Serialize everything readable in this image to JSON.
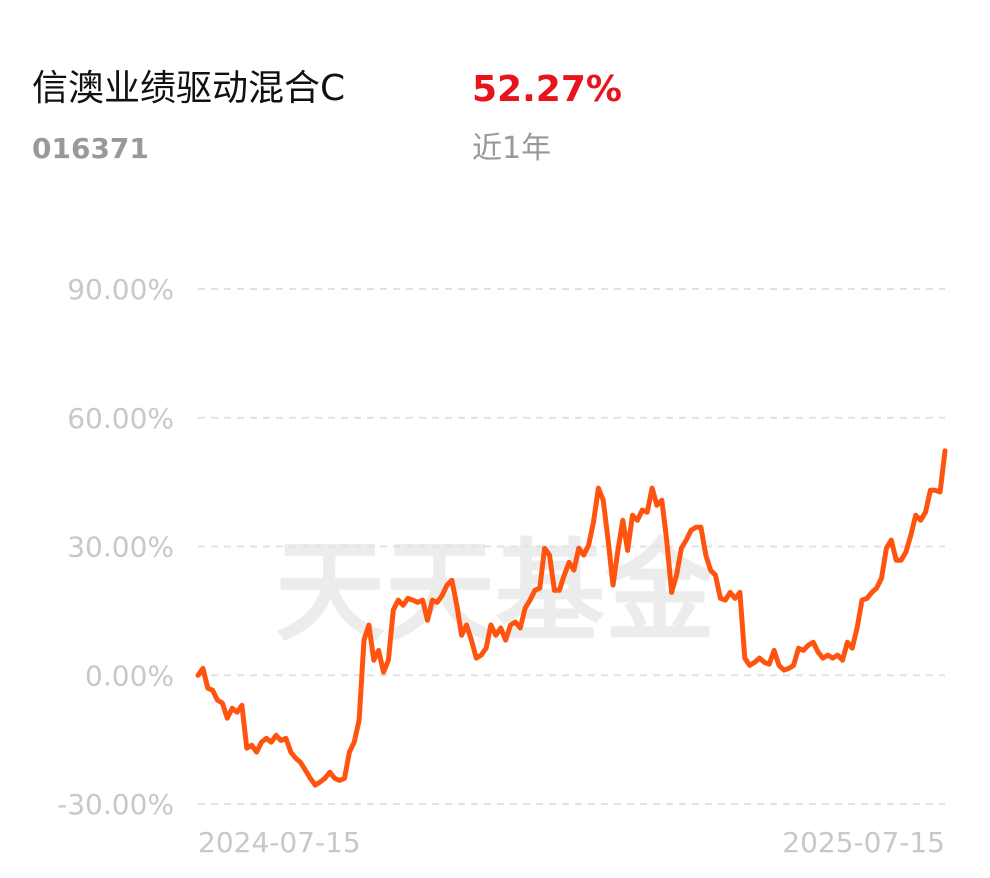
{
  "header": {
    "fund_name": "信澳业绩驱动混合C",
    "fund_code": "016371",
    "return": "52.27%",
    "period": "近1年"
  },
  "watermark": "天天基金",
  "chart_data": {
    "type": "line",
    "color": "#ff5410",
    "grid": true,
    "categories": [
      "2024-07-15",
      null,
      null,
      null,
      null,
      null,
      null,
      null,
      null,
      null,
      null,
      null,
      null,
      null,
      null,
      null,
      null,
      null,
      null,
      null,
      null,
      null,
      null,
      null,
      null,
      null,
      null,
      null,
      null,
      null,
      null,
      null,
      null,
      null,
      null,
      null,
      null,
      null,
      null,
      null,
      null,
      null,
      null,
      null,
      null,
      null,
      null,
      null,
      null,
      null,
      null,
      null,
      null,
      null,
      null,
      null,
      null,
      null,
      null,
      null,
      null,
      null,
      null,
      null,
      null,
      null,
      null,
      null,
      null,
      null,
      null,
      null,
      null,
      null,
      null,
      null,
      null,
      null,
      null,
      null,
      null,
      null,
      null,
      null,
      null,
      null,
      null,
      null,
      null,
      null,
      null,
      null,
      null,
      null,
      null,
      null,
      null,
      null,
      null,
      null,
      null,
      null,
      null,
      null,
      null,
      null,
      null,
      null,
      null,
      null,
      null,
      null,
      null,
      null,
      null,
      null,
      null,
      null,
      null,
      null,
      null,
      null,
      null,
      null,
      null,
      null,
      null,
      null,
      null,
      null,
      null,
      null,
      null,
      null,
      null,
      null,
      null,
      null,
      null,
      null,
      null,
      null,
      null,
      null,
      null,
      null,
      null,
      null,
      null,
      null,
      null,
      null,
      null,
      "2025-07-15"
    ],
    "values": [
      0,
      1.6,
      -3.0,
      -3.5,
      -5.8,
      -6.5,
      -10.0,
      -7.7,
      -8.6,
      -7.0,
      -17.0,
      -16.3,
      -17.9,
      -15.6,
      -14.7,
      -15.6,
      -14.0,
      -15.2,
      -14.7,
      -17.9,
      -19.3,
      -20.3,
      -22.1,
      -24.0,
      -25.6,
      -24.9,
      -24.0,
      -22.6,
      -24.0,
      -24.5,
      -24.0,
      -17.9,
      -15.6,
      -10.5,
      8.2,
      11.7,
      3.5,
      5.8,
      0.7,
      3.5,
      15.2,
      17.5,
      16.3,
      17.9,
      17.5,
      17.0,
      17.5,
      12.8,
      17.5,
      17.0,
      18.6,
      21.0,
      22.1,
      16.3,
      9.3,
      11.7,
      8.2,
      4.0,
      4.7,
      6.3,
      11.7,
      9.3,
      11.0,
      8.2,
      11.7,
      12.4,
      11.0,
      15.6,
      17.5,
      19.8,
      20.3,
      29.6,
      28.0,
      19.8,
      19.8,
      23.3,
      26.3,
      24.5,
      29.6,
      28.0,
      30.3,
      35.7,
      43.6,
      40.8,
      31.5,
      21.0,
      29.1,
      36.1,
      29.1,
      37.3,
      36.1,
      38.5,
      38.0,
      43.6,
      39.6,
      40.8,
      31.5,
      19.3,
      23.3,
      29.6,
      31.5,
      33.8,
      34.5,
      34.5,
      28.0,
      24.5,
      23.3,
      17.9,
      17.5,
      19.3,
      17.9,
      19.3,
      4.0,
      2.3,
      3.0,
      4.0,
      3.0,
      2.6,
      5.8,
      2.3,
      1.2,
      1.6,
      2.3,
      6.3,
      5.8,
      7.0,
      7.7,
      5.4,
      4.0,
      4.7,
      4.0,
      4.7,
      3.5,
      7.7,
      6.3,
      11.0,
      17.5,
      17.9,
      19.3,
      20.3,
      22.6,
      29.6,
      31.5,
      26.8,
      26.8,
      28.7,
      32.6,
      37.3,
      36.1,
      38.0,
      43.1,
      43.1,
      42.7,
      52.27
    ],
    "ylim": [
      -30,
      90
    ],
    "yticks": [
      {
        "value": -30,
        "label": "-30.00%"
      },
      {
        "value": 0,
        "label": "0.00%"
      },
      {
        "value": 30,
        "label": "30.00%"
      },
      {
        "value": 60,
        "label": "60.00%"
      },
      {
        "value": 90,
        "label": "90.00%"
      }
    ]
  }
}
